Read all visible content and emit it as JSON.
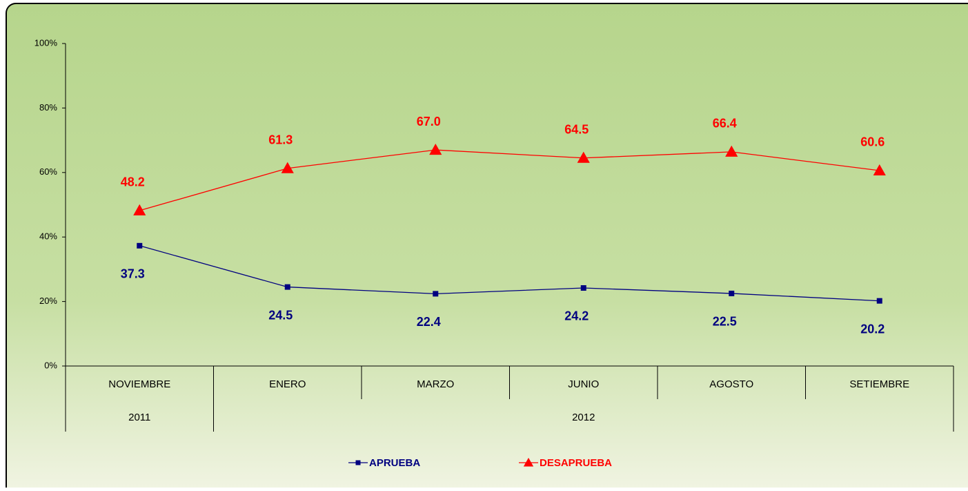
{
  "chart_data": {
    "type": "line",
    "categories": [
      "NOVIEMBRE",
      "ENERO",
      "MARZO",
      "JUNIO",
      "AGOSTO",
      "SETIEMBRE"
    ],
    "category_groups": [
      {
        "label": "2011",
        "span": 1
      },
      {
        "label": "2012",
        "span": 5
      }
    ],
    "series": [
      {
        "name": "APRUEBA",
        "color": "#000080",
        "marker": "square",
        "values": [
          37.3,
          24.5,
          22.4,
          24.2,
          22.5,
          20.2
        ],
        "value_labels": [
          "37.3",
          "24.5",
          "22.4",
          "24.2",
          "22.5",
          "20.2"
        ]
      },
      {
        "name": "DESAPRUEBA",
        "color": "#ff0000",
        "marker": "triangle",
        "values": [
          48.2,
          61.3,
          67.0,
          64.5,
          66.4,
          60.6
        ],
        "value_labels": [
          "48.2",
          "61.3",
          "67.0",
          "64.5",
          "66.4",
          "60.6"
        ]
      }
    ],
    "ylim": [
      0,
      100
    ],
    "yticks": [
      {
        "value": 0,
        "label": "0%"
      },
      {
        "value": 20,
        "label": "20%"
      },
      {
        "value": 40,
        "label": "40%"
      },
      {
        "value": 60,
        "label": "60%"
      },
      {
        "value": 80,
        "label": "80%"
      },
      {
        "value": 100,
        "label": "100%"
      }
    ],
    "grid": false,
    "legend": "bottom"
  }
}
